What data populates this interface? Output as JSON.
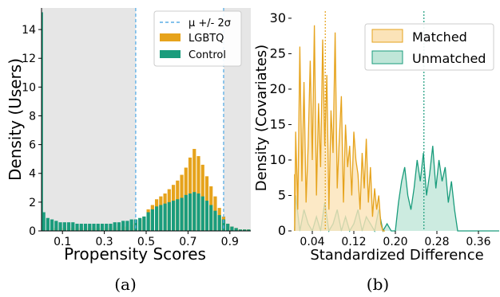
{
  "chart_data": [
    {
      "type": "bar",
      "xlabel": "Propensity Scores",
      "ylabel": "Density (Users)",
      "caption": "(a)",
      "xlim": [
        0.0,
        1.0
      ],
      "ylim": [
        0,
        15.5
      ],
      "xticks": [
        0.1,
        0.3,
        0.5,
        0.7,
        0.9
      ],
      "xtick_labels": [
        "0.1",
        "0.3",
        "0.5",
        "0.7",
        "0.9"
      ],
      "yticks": [
        0,
        2,
        4,
        6,
        8,
        10,
        12,
        14
      ],
      "ytick_labels": [
        "0",
        "2",
        "4",
        "6",
        "8",
        "10",
        "12",
        "14"
      ],
      "shaded_regions": [
        [
          0.0,
          0.45
        ],
        [
          0.87,
          1.0
        ]
      ],
      "vlines": [
        0.45,
        0.87
      ],
      "legend": {
        "placement": "top-right",
        "entries": [
          {
            "label": "μ +/- 2σ",
            "kind": "dashed-line",
            "color": "#5aaee6"
          },
          {
            "label": "LGBTQ",
            "kind": "patch",
            "color": "#e6a31c"
          },
          {
            "label": "Control",
            "kind": "patch",
            "color": "#1a9c7c"
          }
        ]
      },
      "series": [
        {
          "name": "LGBTQ",
          "color": "#e6a31c",
          "x": [
            0.05,
            0.07,
            0.09,
            0.11,
            0.13,
            0.15,
            0.17,
            0.19,
            0.21,
            0.23,
            0.25,
            0.27,
            0.29,
            0.31,
            0.33,
            0.35,
            0.37,
            0.39,
            0.41,
            0.43,
            0.45,
            0.47,
            0.49,
            0.51,
            0.53,
            0.55,
            0.57,
            0.59,
            0.61,
            0.63,
            0.65,
            0.67,
            0.69,
            0.71,
            0.73,
            0.75,
            0.77,
            0.79,
            0.81,
            0.83,
            0.85,
            0.87,
            0.89,
            0.91,
            0.93,
            0.95,
            0.97,
            0.99
          ],
          "values": [
            0.2,
            0.2,
            0.2,
            0.2,
            0.2,
            0.2,
            0.2,
            0.2,
            0.2,
            0.2,
            0.2,
            0.2,
            0.2,
            0.2,
            0.2,
            0.2,
            0.3,
            0.3,
            0.3,
            0.4,
            0.5,
            0.8,
            1.0,
            1.5,
            1.8,
            2.2,
            2.4,
            2.6,
            2.9,
            3.2,
            3.5,
            3.9,
            4.4,
            5.1,
            5.7,
            5.2,
            4.6,
            3.8,
            3.1,
            2.4,
            1.6,
            1.0,
            0.5,
            0.3,
            0.2,
            0.1,
            0.1,
            0.1
          ]
        },
        {
          "name": "Control",
          "color": "#1a9c7c",
          "x": [
            0.003,
            0.01,
            0.03,
            0.05,
            0.07,
            0.09,
            0.11,
            0.13,
            0.15,
            0.17,
            0.19,
            0.21,
            0.23,
            0.25,
            0.27,
            0.29,
            0.31,
            0.33,
            0.35,
            0.37,
            0.39,
            0.41,
            0.43,
            0.45,
            0.47,
            0.49,
            0.51,
            0.53,
            0.55,
            0.57,
            0.59,
            0.61,
            0.63,
            0.65,
            0.67,
            0.69,
            0.71,
            0.73,
            0.75,
            0.77,
            0.79,
            0.81,
            0.83,
            0.85,
            0.87,
            0.89,
            0.91,
            0.93,
            0.95,
            0.97,
            0.99
          ],
          "values": [
            15.2,
            1.3,
            0.9,
            0.8,
            0.7,
            0.6,
            0.6,
            0.6,
            0.6,
            0.5,
            0.5,
            0.5,
            0.5,
            0.5,
            0.5,
            0.5,
            0.5,
            0.5,
            0.6,
            0.6,
            0.7,
            0.7,
            0.8,
            0.8,
            0.9,
            1.0,
            1.3,
            1.5,
            1.7,
            1.8,
            1.9,
            2.0,
            2.1,
            2.2,
            2.3,
            2.5,
            2.6,
            2.7,
            2.6,
            2.4,
            2.1,
            1.8,
            1.4,
            1.1,
            0.8,
            0.5,
            0.3,
            0.2,
            0.1,
            0.1,
            0.1
          ]
        }
      ]
    },
    {
      "type": "area",
      "xlabel": "Standardized Difference",
      "ylabel": "Density (Covariates)",
      "caption": "(b)",
      "xlim": [
        0.0,
        0.4
      ],
      "ylim": [
        0,
        31
      ],
      "xticks": [
        0.04,
        0.12,
        0.2,
        0.28,
        0.36
      ],
      "xtick_labels": [
        "0.04",
        "0.12",
        "0.20",
        "0.28",
        "0.36"
      ],
      "yticks": [
        0,
        5,
        10,
        15,
        20,
        25,
        30
      ],
      "ytick_labels": [
        "0",
        "5",
        "10",
        "15",
        "20",
        "25",
        "30"
      ],
      "vlines": [
        {
          "x": 0.065,
          "color": "#e6a31c"
        },
        {
          "x": 0.255,
          "color": "#1a9c7c"
        }
      ],
      "legend": {
        "placement": "top-right",
        "entries": [
          {
            "label": "Matched",
            "color": "#e6a31c",
            "fill": "#fbe3b8"
          },
          {
            "label": "Unmatched",
            "color": "#1a9c7c",
            "fill": "#bfe6d8"
          }
        ]
      },
      "series": [
        {
          "name": "Matched",
          "color": "#e6a31c",
          "fill": "#fbe3b8",
          "x": [
            0.0,
            0.004,
            0.008,
            0.012,
            0.016,
            0.02,
            0.024,
            0.028,
            0.032,
            0.036,
            0.04,
            0.044,
            0.048,
            0.052,
            0.056,
            0.06,
            0.064,
            0.068,
            0.072,
            0.076,
            0.08,
            0.084,
            0.088,
            0.092,
            0.096,
            0.1,
            0.104,
            0.108,
            0.112,
            0.116,
            0.12,
            0.124,
            0.128,
            0.132,
            0.136,
            0.14,
            0.144,
            0.148,
            0.152,
            0.156,
            0.16,
            0.164,
            0.168,
            0.172,
            0.176,
            0.18
          ],
          "values": [
            8,
            0,
            14,
            3,
            26,
            7,
            21,
            4,
            12,
            24,
            10,
            29,
            5,
            18,
            9,
            27,
            12,
            22,
            3,
            17,
            11,
            28,
            6,
            13,
            19,
            4,
            15,
            9,
            12,
            5,
            14,
            10,
            8,
            3,
            11,
            6,
            13,
            4,
            9,
            2,
            6,
            3,
            5,
            1,
            0,
            0
          ]
        },
        {
          "name": "Unmatched",
          "color": "#1a9c7c",
          "fill": "#bfe6d8",
          "x": [
            0.0,
            0.008,
            0.016,
            0.024,
            0.032,
            0.04,
            0.048,
            0.056,
            0.064,
            0.072,
            0.08,
            0.088,
            0.096,
            0.104,
            0.112,
            0.12,
            0.128,
            0.136,
            0.144,
            0.152,
            0.16,
            0.168,
            0.176,
            0.184,
            0.192,
            0.2,
            0.206,
            0.212,
            0.218,
            0.224,
            0.23,
            0.236,
            0.242,
            0.248,
            0.254,
            0.26,
            0.266,
            0.272,
            0.278,
            0.284,
            0.29,
            0.296,
            0.302,
            0.308,
            0.314,
            0.32,
            0.33,
            0.35,
            0.37,
            0.4
          ],
          "values": [
            0,
            5,
            0,
            3,
            1,
            0,
            2,
            0,
            4,
            0,
            1,
            3,
            0,
            2,
            0,
            1,
            3,
            0,
            2,
            1,
            0,
            3,
            0,
            1,
            0,
            0,
            4,
            7,
            9,
            5,
            3,
            6,
            10,
            7,
            11,
            5,
            8,
            12,
            6,
            10,
            7,
            9,
            4,
            7,
            3,
            0,
            0,
            0,
            0,
            0
          ]
        }
      ]
    }
  ]
}
